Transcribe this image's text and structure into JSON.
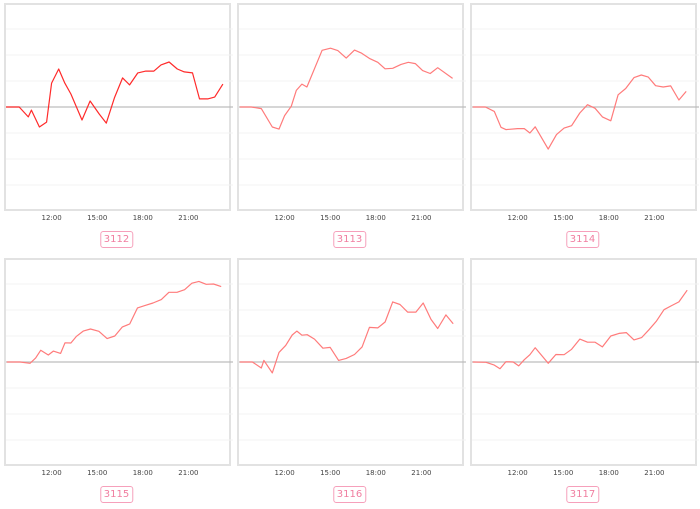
{
  "chart_data": [
    {
      "type": "line",
      "title": "3112",
      "xticks": [
        "12:00",
        "15:00",
        "18:00",
        "21:00"
      ],
      "xlim": [
        9,
        24
      ],
      "ylim": [
        -4,
        4
      ],
      "grid": true,
      "color": "#ff2a2a",
      "x": [
        9.0,
        9.87,
        10.47,
        10.67,
        11.2,
        11.67,
        12.0,
        12.47,
        12.87,
        13.27,
        14.0,
        14.53,
        15.13,
        15.6,
        16.13,
        16.67,
        17.13,
        17.67,
        18.2,
        18.73,
        19.2,
        19.73,
        20.27,
        20.73,
        21.27,
        21.73,
        22.27,
        22.73,
        23.27
      ],
      "y": [
        0,
        0,
        -0.38,
        -0.12,
        -0.77,
        -0.58,
        0.92,
        1.46,
        0.92,
        0.5,
        -0.5,
        0.23,
        -0.27,
        -0.62,
        0.35,
        1.12,
        0.85,
        1.31,
        1.38,
        1.38,
        1.62,
        1.73,
        1.46,
        1.35,
        1.31,
        0.31,
        0.31,
        0.38,
        0.88
      ]
    },
    {
      "type": "line",
      "title": "3113",
      "xticks": [
        "12:00",
        "15:00",
        "18:00",
        "21:00"
      ],
      "xlim": [
        9,
        24
      ],
      "ylim": [
        -4,
        4
      ],
      "grid": true,
      "color": "#ff7b7b",
      "x": [
        9.05,
        9.81,
        10.47,
        11.19,
        11.63,
        12.0,
        12.44,
        12.77,
        13.14,
        13.47,
        14.47,
        15.02,
        15.5,
        16.05,
        16.6,
        17.03,
        17.58,
        18.13,
        18.61,
        19.11,
        19.66,
        20.14,
        20.6,
        21.08,
        21.58,
        22.07,
        23.05
      ],
      "y": [
        0,
        0,
        -0.06,
        -0.77,
        -0.85,
        -0.33,
        0.03,
        0.64,
        0.88,
        0.77,
        2.18,
        2.26,
        2.17,
        1.88,
        2.19,
        2.08,
        1.87,
        1.72,
        1.47,
        1.49,
        1.64,
        1.72,
        1.67,
        1.4,
        1.29,
        1.51,
        1.1
      ]
    },
    {
      "type": "line",
      "title": "3114",
      "xticks": [
        "12:00",
        "15:00",
        "18:00",
        "21:00"
      ],
      "xlim": [
        9,
        24
      ],
      "ylim": [
        -4,
        4
      ],
      "grid": true,
      "color": "#ff7b7b",
      "x": [
        9.05,
        9.88,
        10.47,
        10.91,
        11.23,
        12.0,
        12.44,
        12.81,
        13.16,
        14.01,
        14.56,
        15.06,
        15.55,
        16.09,
        16.6,
        17.1,
        17.58,
        18.13,
        18.61,
        19.11,
        19.66,
        20.14,
        20.6,
        21.08,
        21.58,
        22.07,
        22.61,
        23.09
      ],
      "y": [
        0,
        0,
        -0.17,
        -0.78,
        -0.87,
        -0.83,
        -0.83,
        -1.0,
        -0.76,
        -1.62,
        -1.06,
        -0.81,
        -0.72,
        -0.23,
        0.09,
        -0.05,
        -0.38,
        -0.53,
        0.47,
        0.71,
        1.13,
        1.23,
        1.15,
        0.82,
        0.77,
        0.81,
        0.27,
        0.6
      ]
    },
    {
      "type": "line",
      "title": "3115",
      "xticks": [
        "12:00",
        "15:00",
        "18:00",
        "21:00"
      ],
      "xlim": [
        9,
        24
      ],
      "ylim": [
        -4,
        4
      ],
      "grid": true,
      "color": "#ff7b7b",
      "x": [
        9.05,
        9.93,
        10.58,
        10.95,
        11.28,
        11.78,
        12.11,
        12.59,
        12.88,
        13.27,
        13.64,
        14.08,
        14.56,
        15.11,
        15.65,
        16.16,
        16.66,
        17.14,
        17.65,
        18.13,
        18.67,
        19.22,
        19.72,
        20.25,
        20.75,
        21.23,
        21.69,
        22.17,
        22.65,
        23.16
      ],
      "y": [
        0,
        0,
        -0.05,
        0.15,
        0.45,
        0.27,
        0.42,
        0.33,
        0.74,
        0.73,
        0.99,
        1.19,
        1.27,
        1.18,
        0.9,
        1.0,
        1.35,
        1.46,
        2.08,
        2.17,
        2.27,
        2.4,
        2.68,
        2.68,
        2.78,
        3.03,
        3.1,
        2.99,
        3.0,
        2.9
      ]
    },
    {
      "type": "line",
      "title": "3116",
      "xticks": [
        "12:00",
        "15:00",
        "18:00",
        "21:00"
      ],
      "xlim": [
        9,
        24
      ],
      "ylim": [
        -4,
        4
      ],
      "grid": true,
      "color": "#ff7b7b",
      "x": [
        9.05,
        9.88,
        10.47,
        10.64,
        11.19,
        11.63,
        12.07,
        12.5,
        12.81,
        13.14,
        13.49,
        13.97,
        14.52,
        15.0,
        15.55,
        16.05,
        16.6,
        17.1,
        17.58,
        18.13,
        18.61,
        19.11,
        19.59,
        20.09,
        20.64,
        21.12,
        21.63,
        22.07,
        22.61,
        23.09
      ],
      "y": [
        0,
        0,
        -0.23,
        0.06,
        -0.42,
        0.37,
        0.64,
        1.04,
        1.19,
        1.03,
        1.05,
        0.88,
        0.53,
        0.56,
        0.06,
        0.14,
        0.29,
        0.58,
        1.33,
        1.31,
        1.54,
        2.31,
        2.21,
        1.92,
        1.92,
        2.27,
        1.64,
        1.29,
        1.81,
        1.47
      ]
    },
    {
      "type": "line",
      "title": "3117",
      "xticks": [
        "12:00",
        "15:00",
        "18:00",
        "21:00"
      ],
      "xlim": [
        9,
        24
      ],
      "ylim": [
        -4,
        4
      ],
      "grid": true,
      "color": "#ff7b7b",
      "x": [
        9.05,
        9.92,
        10.47,
        10.84,
        11.23,
        11.71,
        12.07,
        12.44,
        12.81,
        13.16,
        14.01,
        14.52,
        15.06,
        15.55,
        16.09,
        16.6,
        17.1,
        17.58,
        18.13,
        18.67,
        19.15,
        19.66,
        20.16,
        20.64,
        21.12,
        21.63,
        22.13,
        22.61,
        23.16
      ],
      "y": [
        0,
        -0.01,
        -0.12,
        -0.26,
        0.01,
        0,
        -0.15,
        0.09,
        0.28,
        0.55,
        -0.05,
        0.29,
        0.28,
        0.49,
        0.88,
        0.76,
        0.76,
        0.58,
        1.0,
        1.1,
        1.13,
        0.85,
        0.94,
        1.24,
        1.56,
        2.01,
        2.17,
        2.31,
        2.76
      ]
    }
  ]
}
